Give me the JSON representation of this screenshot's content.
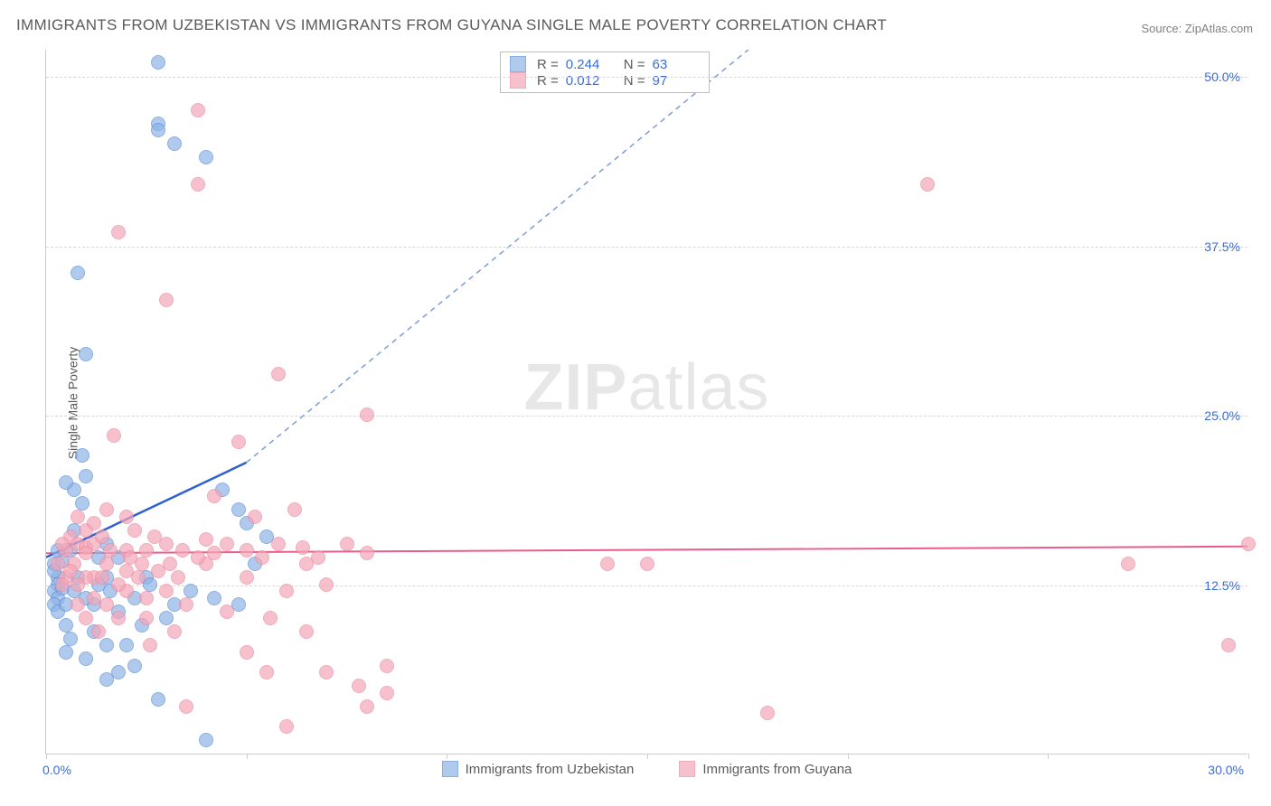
{
  "title": "IMMIGRANTS FROM UZBEKISTAN VS IMMIGRANTS FROM GUYANA SINGLE MALE POVERTY CORRELATION CHART",
  "source": "Source: ZipAtlas.com",
  "ylabel": "Single Male Poverty",
  "watermark_bold": "ZIP",
  "watermark_light": "atlas",
  "chart": {
    "type": "scatter",
    "xlim": [
      0,
      30
    ],
    "ylim": [
      0,
      52
    ],
    "background_color": "#ffffff",
    "grid_color": "#d8d8d8",
    "axis_color": "#cccccc",
    "tick_label_color": "#3b6bd6",
    "ytick_values": [
      12.5,
      25.0,
      37.5,
      50.0
    ],
    "ytick_labels": [
      "12.5%",
      "25.0%",
      "37.5%",
      "50.0%"
    ],
    "xtick_positions": [
      0,
      5,
      10,
      15,
      20,
      25,
      30
    ],
    "xaxis_start_label": "0.0%",
    "xaxis_end_label": "30.0%",
    "marker_radius": 8,
    "series": [
      {
        "name": "Immigrants from Uzbekistan",
        "fill": "#8fb4e8",
        "fill_opacity": 0.35,
        "stroke": "#5a8fd6",
        "r_value": "0.244",
        "n_value": "63",
        "trend": {
          "solid_to_x": 5,
          "dashed_to_x": 20,
          "y_at_0": 14.5,
          "y_at_5": 21.5,
          "y_at_20": 58,
          "solid_color": "#2f5fd0",
          "dashed_color": "#7a9ed9"
        },
        "points": [
          [
            0.2,
            14
          ],
          [
            0.3,
            13
          ],
          [
            0.3,
            12.5
          ],
          [
            0.2,
            12
          ],
          [
            0.3,
            11.5
          ],
          [
            0.2,
            11
          ],
          [
            0.3,
            15
          ],
          [
            0.4,
            14.2
          ],
          [
            0.2,
            13.5
          ],
          [
            0.4,
            12.2
          ],
          [
            0.3,
            10.5
          ],
          [
            0.5,
            9.5
          ],
          [
            0.6,
            8.5
          ],
          [
            0.5,
            11
          ],
          [
            0.8,
            13
          ],
          [
            0.7,
            12
          ],
          [
            0.6,
            15
          ],
          [
            0.7,
            16.5
          ],
          [
            0.9,
            18.5
          ],
          [
            0.7,
            19.5
          ],
          [
            1.0,
            20.5
          ],
          [
            0.5,
            20
          ],
          [
            0.9,
            22
          ],
          [
            0.8,
            35.5
          ],
          [
            1.0,
            29.5
          ],
          [
            1.2,
            9
          ],
          [
            1.5,
            8
          ],
          [
            1.2,
            11
          ],
          [
            1.5,
            13
          ],
          [
            1.6,
            12
          ],
          [
            1.8,
            10.5
          ],
          [
            2.0,
            8
          ],
          [
            2.2,
            11.5
          ],
          [
            2.4,
            9.5
          ],
          [
            2.5,
            13
          ],
          [
            2.6,
            12.5
          ],
          [
            3.0,
            10
          ],
          [
            3.2,
            11
          ],
          [
            2.8,
            4
          ],
          [
            2.8,
            46.5
          ],
          [
            2.8,
            46
          ],
          [
            3.2,
            45
          ],
          [
            2.8,
            51
          ],
          [
            4.0,
            44
          ],
          [
            4.0,
            1
          ],
          [
            3.6,
            12
          ],
          [
            4.2,
            11.5
          ],
          [
            4.4,
            19.5
          ],
          [
            4.8,
            18
          ],
          [
            4.8,
            11
          ],
          [
            5.0,
            17
          ],
          [
            5.2,
            14
          ],
          [
            5.5,
            16
          ],
          [
            1.3,
            14.5
          ],
          [
            1.5,
            15.5
          ],
          [
            1.8,
            14.5
          ],
          [
            1.0,
            11.5
          ],
          [
            1.3,
            12.5
          ],
          [
            0.5,
            7.5
          ],
          [
            1.0,
            7
          ],
          [
            1.5,
            5.5
          ],
          [
            1.8,
            6
          ],
          [
            2.2,
            6.5
          ]
        ]
      },
      {
        "name": "Immigrants from Guyana",
        "fill": "#f5a6b8",
        "fill_opacity": 0.35,
        "stroke": "#e98aa0",
        "r_value": "0.012",
        "n_value": "97",
        "trend": {
          "y_at_0": 14.8,
          "y_at_30": 15.3,
          "color": "#e85d8a",
          "width": 2
        },
        "points": [
          [
            0.5,
            15
          ],
          [
            0.6,
            16
          ],
          [
            0.8,
            17.5
          ],
          [
            0.8,
            15.5
          ],
          [
            1.0,
            16.5
          ],
          [
            1.0,
            15.2
          ],
          [
            1.2,
            15.5
          ],
          [
            1.2,
            13
          ],
          [
            1.4,
            16
          ],
          [
            1.5,
            14
          ],
          [
            1.5,
            18
          ],
          [
            1.7,
            23.5
          ],
          [
            1.8,
            38.5
          ],
          [
            2.0,
            15
          ],
          [
            2.0,
            13.5
          ],
          [
            2.0,
            12
          ],
          [
            2.2,
            16.5
          ],
          [
            2.4,
            14
          ],
          [
            2.5,
            11.5
          ],
          [
            2.5,
            10
          ],
          [
            2.6,
            8
          ],
          [
            2.8,
            13.5
          ],
          [
            3.0,
            33.5
          ],
          [
            3.0,
            15.5
          ],
          [
            3.0,
            12
          ],
          [
            3.2,
            9
          ],
          [
            3.4,
            15
          ],
          [
            3.5,
            3.5
          ],
          [
            3.8,
            47.5
          ],
          [
            3.8,
            42
          ],
          [
            4.2,
            19
          ],
          [
            4.5,
            15.5
          ],
          [
            4.5,
            10.5
          ],
          [
            4.8,
            23
          ],
          [
            5.0,
            15
          ],
          [
            5.0,
            13
          ],
          [
            5.2,
            17.5
          ],
          [
            5.4,
            14.5
          ],
          [
            5.6,
            10
          ],
          [
            5.8,
            15.5
          ],
          [
            6.0,
            12
          ],
          [
            6.2,
            18
          ],
          [
            6.4,
            15.2
          ],
          [
            6.5,
            9
          ],
          [
            6.8,
            14.5
          ],
          [
            7.0,
            12.5
          ],
          [
            7.0,
            6
          ],
          [
            7.5,
            15.5
          ],
          [
            7.8,
            5
          ],
          [
            8.0,
            14.8
          ],
          [
            8.0,
            25
          ],
          [
            8.0,
            3.5
          ],
          [
            8.5,
            6.5
          ],
          [
            8.5,
            4.5
          ],
          [
            5.0,
            7.5
          ],
          [
            5.5,
            6
          ],
          [
            5.8,
            28
          ],
          [
            6.0,
            2
          ],
          [
            6.5,
            14
          ],
          [
            4.0,
            14
          ],
          [
            4.2,
            14.8
          ],
          [
            4.0,
            15.8
          ],
          [
            3.5,
            11
          ],
          [
            3.8,
            14.5
          ],
          [
            1.0,
            13
          ],
          [
            1.5,
            11
          ],
          [
            1.8,
            10
          ],
          [
            2.0,
            17.5
          ],
          [
            2.5,
            15
          ],
          [
            0.7,
            14
          ],
          [
            0.5,
            13
          ],
          [
            0.8,
            12.5
          ],
          [
            1.0,
            10
          ],
          [
            1.3,
            9
          ],
          [
            1.2,
            11.5
          ],
          [
            14.0,
            14
          ],
          [
            15.0,
            14
          ],
          [
            18.0,
            3
          ],
          [
            22.0,
            42
          ],
          [
            27.0,
            14
          ],
          [
            29.5,
            8
          ],
          [
            30.0,
            15.5
          ],
          [
            0.3,
            14
          ],
          [
            0.4,
            15.5
          ],
          [
            0.6,
            13.5
          ],
          [
            0.4,
            12.5
          ],
          [
            0.8,
            11
          ],
          [
            1.0,
            14.8
          ],
          [
            1.2,
            17
          ],
          [
            1.4,
            13
          ],
          [
            1.6,
            15
          ],
          [
            1.8,
            12.5
          ],
          [
            2.1,
            14.5
          ],
          [
            2.3,
            13
          ],
          [
            2.7,
            16
          ],
          [
            3.1,
            14
          ],
          [
            3.3,
            13
          ]
        ]
      }
    ]
  },
  "legend_stats_box": {
    "r_label": "R =",
    "n_label": "N ="
  },
  "bottom_legend": {
    "series1_label": "Immigrants from Uzbekistan",
    "series2_label": "Immigrants from Guyana"
  }
}
